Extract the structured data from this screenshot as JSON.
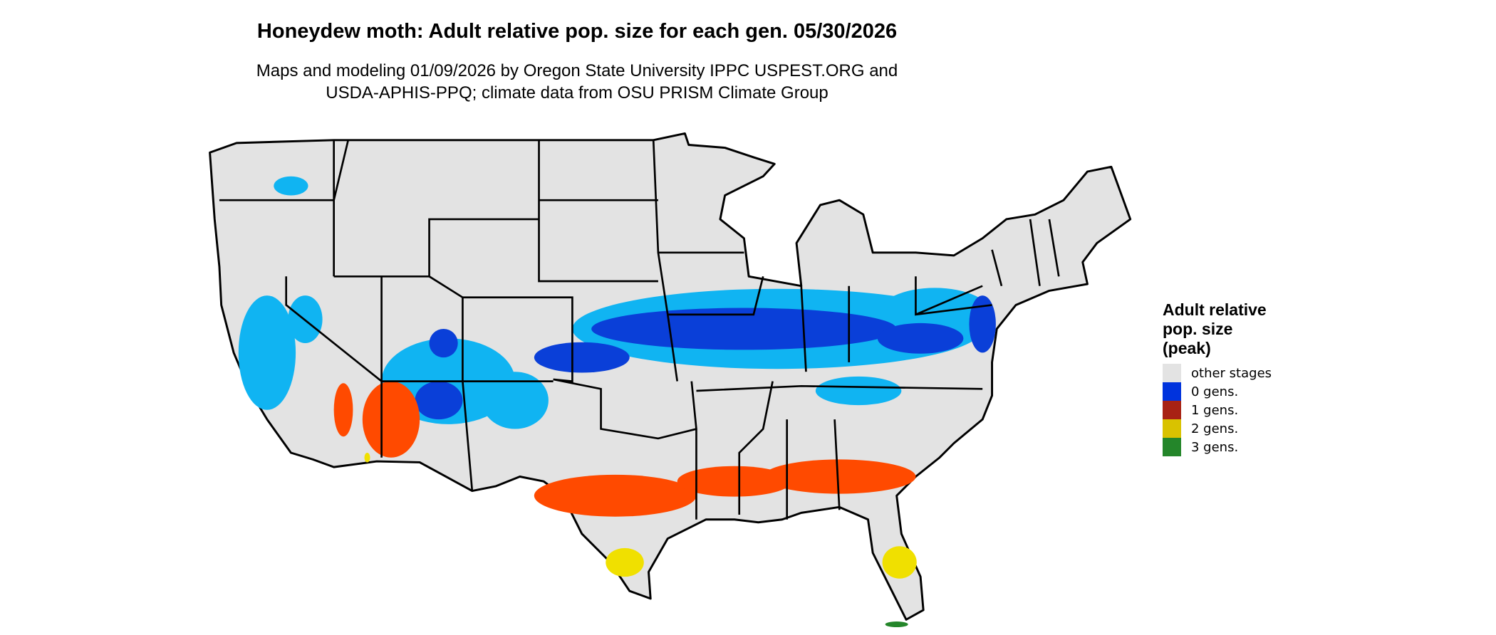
{
  "title": "Honeydew moth: Adult relative pop. size for each gen. 05/30/2026",
  "subtitle_lines": [
    "Maps and modeling 01/09/2026 by Oregon State University IPPC USPEST.ORG and",
    "USDA-APHIS-PPQ; climate data from OSU PRISM Climate Group"
  ],
  "legend": {
    "title_lines": [
      "Adult relative",
      "pop. size",
      "(peak)"
    ],
    "items": [
      {
        "label": "other stages",
        "color": "#e3e3e3"
      },
      {
        "label": "0 gens.",
        "color": "#0033dd"
      },
      {
        "label": "1 gens.",
        "color": "#a82214"
      },
      {
        "label": "2 gens.",
        "color": "#d9c200"
      },
      {
        "label": "3 gens.",
        "color": "#24862a"
      }
    ]
  },
  "map_colors": {
    "land": "#e3e3e3",
    "light_blue": "#10b4f2",
    "dark_blue": "#0a3fd8",
    "orange": "#ff4a00",
    "red": "#c8321a",
    "yellow": "#f0e000",
    "green": "#24862a"
  }
}
